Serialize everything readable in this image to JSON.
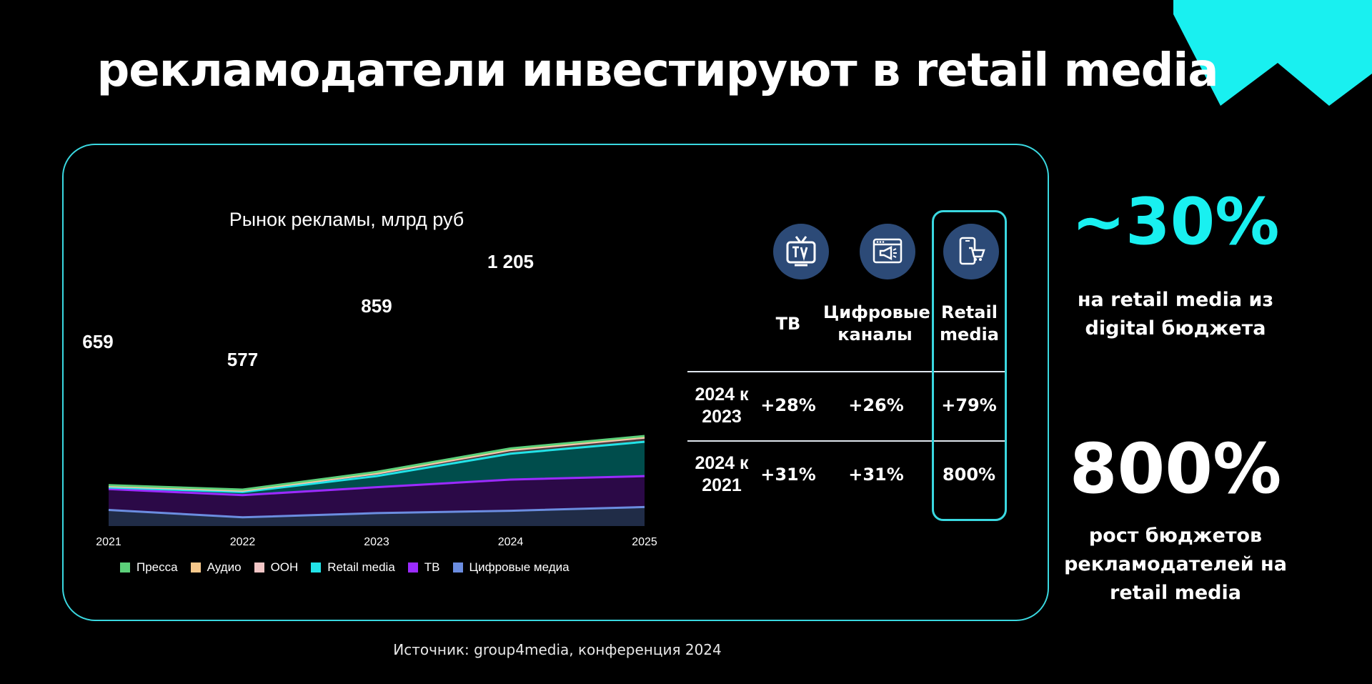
{
  "slide": {
    "title": "рекламодатели инвестируют в retail media",
    "source": "Источник: group4media, конференция 2024",
    "accent_color": "#19f0f0"
  },
  "chart_data": {
    "type": "area",
    "title": "Рынок рекламы, млрд руб",
    "x": [
      "2021",
      "2022",
      "2023",
      "2024",
      "2025"
    ],
    "stacked": true,
    "series": [
      {
        "name": "Цифровые медиа",
        "color": "#6b8de0",
        "fill": "#202c47",
        "values": [
          61,
          33,
          49,
          58,
          72
        ]
      },
      {
        "name": "ТВ",
        "color": "#9b2bff",
        "fill": "#2b0947",
        "values": [
          79,
          84,
          98,
          118,
          117
        ]
      },
      {
        "name": "Retail media",
        "color": "#22e3e8",
        "fill": "#004d4c",
        "values": [
          6,
          12,
          42,
          98,
          130
        ]
      },
      {
        "name": "ООН",
        "color": "#f2c6c6",
        "fill": "#4a3a3a",
        "values": [
          5,
          5,
          10,
          14,
          16
        ]
      },
      {
        "name": "Аудио",
        "color": "#f7c88b",
        "fill": "#4a3a2a",
        "values": [
          2,
          2,
          3,
          3,
          3
        ]
      },
      {
        "name": "Пресса",
        "color": "#5cd07a",
        "fill": "#2a5a34",
        "values": [
          2,
          2,
          3,
          3,
          3
        ]
      }
    ],
    "totals": [
      {
        "x": "2021",
        "label": "659"
      },
      {
        "x": "2022",
        "label": "577"
      },
      {
        "x": "2023",
        "label": "859"
      },
      {
        "x": "2024",
        "label": "1 205"
      }
    ],
    "legend": [
      "Пресса",
      "Аудио",
      "ООН",
      "Retail media",
      "ТВ",
      "Цифровые медиа"
    ]
  },
  "growth_table": {
    "columns": [
      {
        "label": "ТВ",
        "icon": "tv-icon"
      },
      {
        "label": "Цифровые каналы",
        "icon": "digital-channels-icon"
      },
      {
        "label": "Retail media",
        "icon": "phone-cart-icon"
      }
    ],
    "rows": [
      {
        "label": "2024 к 2023",
        "values": [
          "+28%",
          "+26%",
          "+79%"
        ]
      },
      {
        "label": "2024 к 2021",
        "values": [
          "+31%",
          "+31%",
          "800%"
        ]
      }
    ]
  },
  "kpis": [
    {
      "value": "~30%",
      "text": "на retail media из digital бюджета",
      "color": "#19f0f0"
    },
    {
      "value": "800%",
      "text": "рост бюджетов рекламодателей на retail media",
      "color": "#ffffff"
    }
  ]
}
